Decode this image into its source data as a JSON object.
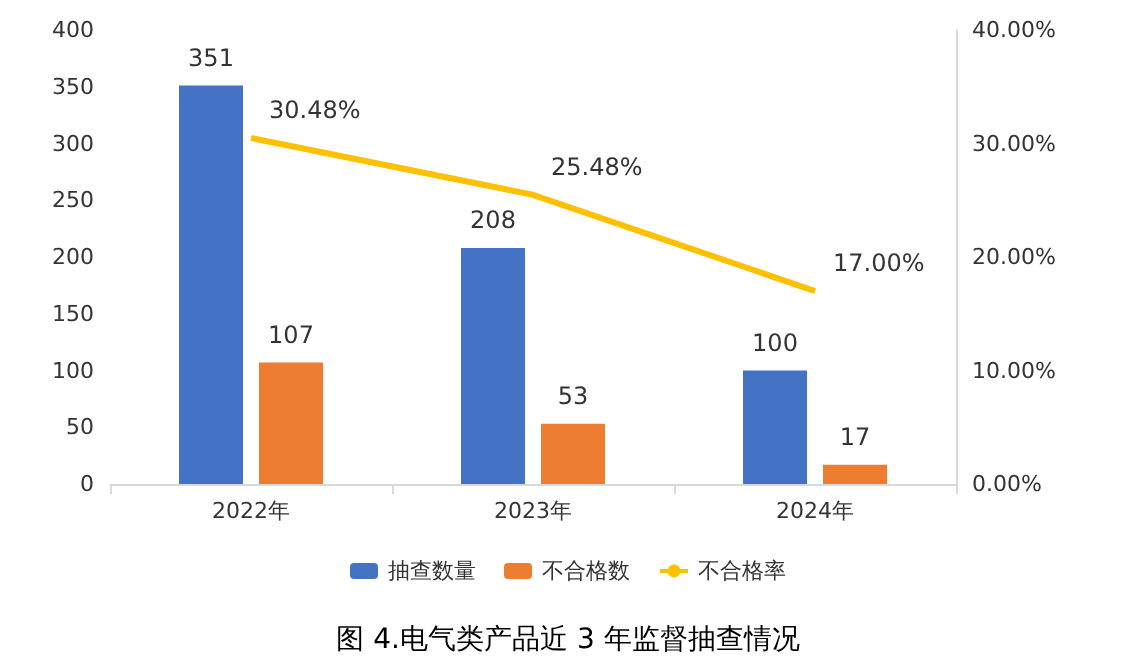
{
  "chart_data": {
    "type": "bar",
    "title": "图 4.电气类产品近 3 年监督抽查情况",
    "categories": [
      "2022年",
      "2023年",
      "2024年"
    ],
    "series": [
      {
        "name": "抽查数量",
        "color": "#4472c4",
        "values": [
          351,
          208,
          100
        ]
      },
      {
        "name": "不合格数",
        "color": "#ed7d31",
        "values": [
          107,
          53,
          17
        ]
      },
      {
        "name": "不合格率",
        "type": "line",
        "axis": "y2",
        "color": "#ffc000",
        "values": [
          30.48,
          25.48,
          17.0
        ],
        "value_labels": [
          "30.48%",
          "25.48%",
          "17.00%"
        ]
      }
    ],
    "ylim": [
      0,
      400
    ],
    "yticks": [
      0,
      50,
      100,
      150,
      200,
      250,
      300,
      350,
      400
    ],
    "y2lim": [
      0,
      40
    ],
    "y2ticks": [
      {
        "value": 0,
        "label": "0.00%"
      },
      {
        "value": 10,
        "label": "10.00%"
      },
      {
        "value": 20,
        "label": "20.00%"
      },
      {
        "value": 30,
        "label": "30.00%"
      },
      {
        "value": 40,
        "label": "40.00%"
      }
    ],
    "data_labels": true,
    "legend": "bottom",
    "grid": false,
    "marker": "none",
    "line_style": "solid"
  }
}
